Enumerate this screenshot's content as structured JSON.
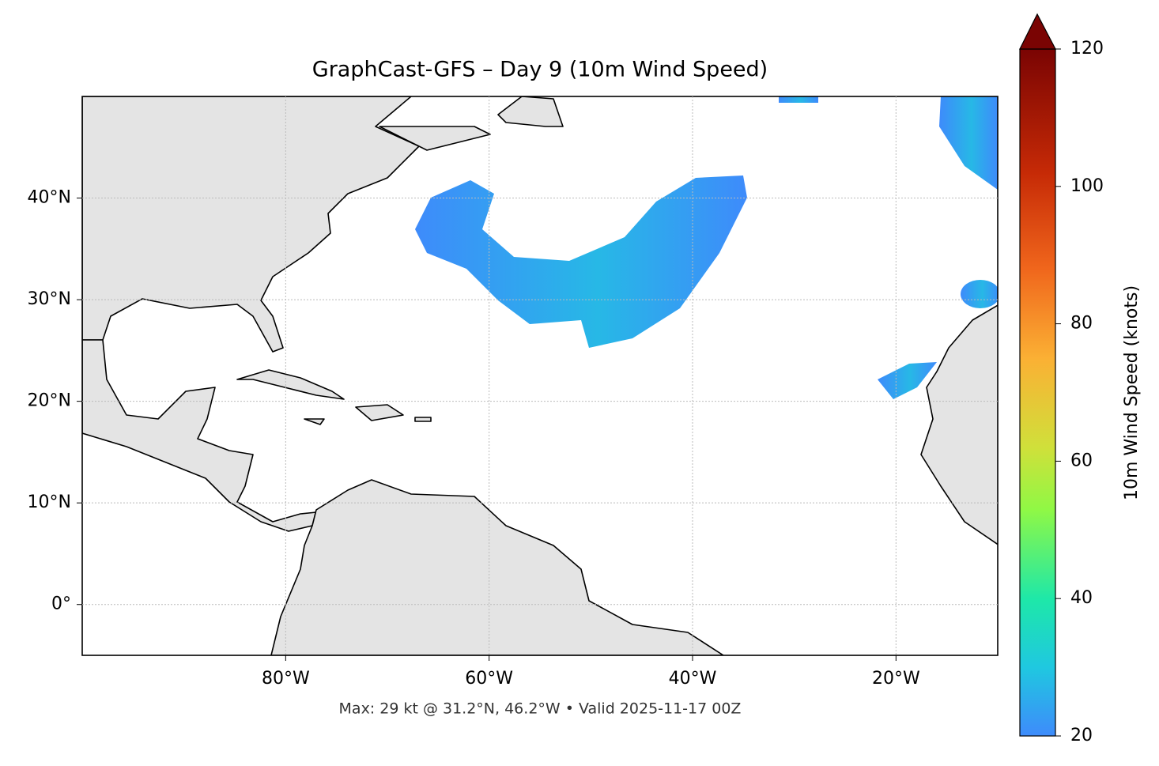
{
  "chart_data": {
    "type": "map",
    "title": "GraphCast-GFS – Day 9 (10m Wind Speed)",
    "footer": "Max: 29 kt @ 31.2°N, 46.2°W • Valid 2025-11-17 00Z",
    "xlim": [
      -100,
      -10
    ],
    "ylim": [
      -5,
      50
    ],
    "xticks": [
      {
        "value": -80,
        "label": "80°W"
      },
      {
        "value": -60,
        "label": "60°W"
      },
      {
        "value": -40,
        "label": "40°W"
      },
      {
        "value": -20,
        "label": "20°W"
      }
    ],
    "yticks": [
      {
        "value": 0,
        "label": "0°"
      },
      {
        "value": 10,
        "label": "10°N"
      },
      {
        "value": 20,
        "label": "20°N"
      },
      {
        "value": 30,
        "label": "30°N"
      },
      {
        "value": 40,
        "label": "40°N"
      }
    ],
    "grid": true,
    "colorbar": {
      "label": "10m Wind Speed (knots)",
      "lim": [
        20,
        120
      ],
      "ticks": [
        20,
        40,
        60,
        80,
        100,
        120
      ]
    }
  }
}
